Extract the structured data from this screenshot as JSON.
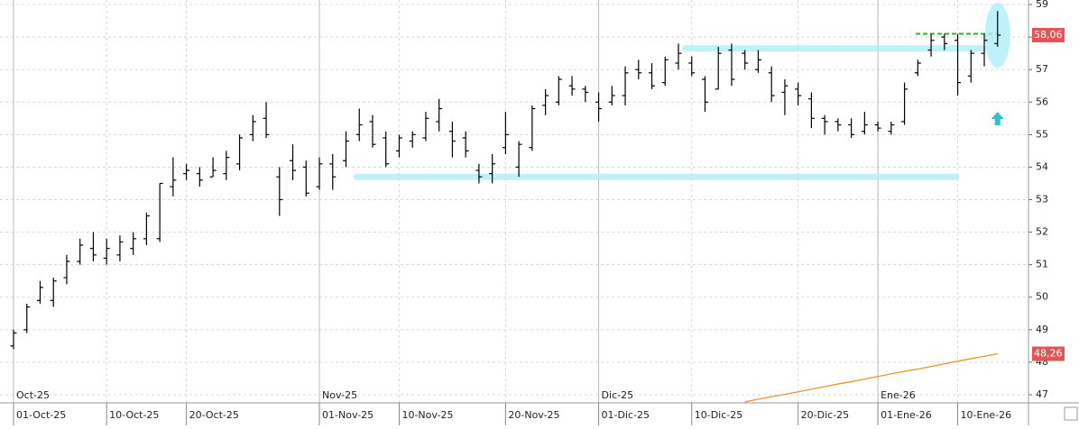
{
  "chart_data": {
    "type": "ohlc",
    "categories": [
      "01-Oct-25",
      null,
      null,
      null,
      null,
      null,
      null,
      "10-Oct-25",
      null,
      null,
      null,
      null,
      null,
      "20-Oct-25",
      null,
      null,
      null,
      null,
      null,
      null,
      null,
      null,
      null,
      "01-Nov-25",
      null,
      null,
      null,
      null,
      null,
      "10-Nov-25",
      null,
      null,
      null,
      null,
      null,
      null,
      null,
      "20-Nov-25",
      null,
      null,
      null,
      null,
      null,
      null,
      "01-Dic-25",
      null,
      null,
      null,
      null,
      null,
      null,
      "10-Dic-25",
      null,
      null,
      null,
      null,
      null,
      null,
      null,
      "20-Dic-25",
      null,
      null,
      null,
      null,
      null,
      "01-Ene-26",
      null,
      null,
      null,
      null,
      null,
      "10-Ene-26",
      null,
      null,
      null
    ],
    "months": [
      "Oct-25",
      null,
      null,
      null,
      null,
      null,
      null,
      null,
      null,
      null,
      null,
      null,
      null,
      null,
      null,
      null,
      null,
      null,
      null,
      null,
      null,
      null,
      null,
      "Nov-25",
      null,
      null,
      null,
      null,
      null,
      null,
      null,
      null,
      null,
      null,
      null,
      null,
      null,
      null,
      null,
      null,
      null,
      null,
      null,
      null,
      "Dic-25",
      null,
      null,
      null,
      null,
      null,
      null,
      null,
      null,
      null,
      null,
      null,
      null,
      null,
      null,
      null,
      null,
      null,
      null,
      null,
      null,
      "Ene-26",
      null,
      null,
      null,
      null,
      null,
      null,
      null,
      null,
      null
    ],
    "open": [
      48.5,
      49.0,
      49.9,
      49.9,
      50.6,
      51.1,
      51.5,
      51.2,
      51.3,
      51.5,
      51.8,
      51.8,
      53.4,
      53.8,
      53.8,
      53.7,
      53.8,
      54.1,
      55.0,
      55.5,
      53.7,
      54.2,
      54.0,
      53.4,
      54.1,
      54.2,
      55.0,
      55.4,
      54.9,
      54.5,
      54.8,
      54.9,
      55.4,
      55.1,
      54.9,
      53.9,
      53.8,
      54.6,
      54.0,
      54.6,
      55.9,
      56.0,
      56.5,
      56.4,
      56.0,
      56.0,
      56.2,
      57.0,
      56.9,
      56.6,
      57.2,
      57.2,
      56.7,
      56.4,
      57.6,
      57.5,
      57.0,
      56.9,
      56.3,
      56.4,
      56.1,
      55.5,
      55.4,
      55.3,
      55.1,
      55.3,
      55.1,
      55.4,
      56.9,
      57.6,
      58.0,
      57.9,
      56.8,
      57.5,
      57.8
    ],
    "high": [
      49.0,
      49.8,
      50.5,
      50.6,
      51.3,
      51.8,
      52.0,
      51.8,
      51.9,
      52.0,
      52.6,
      53.5,
      54.3,
      54.1,
      54.0,
      54.3,
      54.5,
      55.0,
      55.6,
      56.0,
      54.0,
      54.7,
      54.2,
      54.3,
      54.4,
      55.1,
      55.8,
      55.6,
      55.1,
      55.0,
      55.1,
      55.7,
      56.1,
      55.4,
      55.1,
      54.1,
      54.4,
      55.7,
      54.8,
      55.9,
      56.4,
      56.8,
      56.8,
      56.5,
      56.3,
      56.5,
      57.1,
      57.3,
      57.2,
      57.4,
      57.8,
      57.4,
      56.8,
      57.7,
      57.8,
      57.6,
      57.6,
      57.1,
      56.7,
      56.6,
      56.3,
      55.6,
      55.5,
      55.5,
      55.7,
      55.4,
      55.4,
      56.6,
      57.3,
      58.1,
      58.1,
      58.1,
      57.6,
      58.1,
      58.8
    ],
    "low": [
      48.4,
      48.9,
      49.8,
      49.7,
      50.4,
      51.0,
      51.1,
      51.0,
      51.1,
      51.3,
      51.6,
      51.7,
      53.1,
      53.6,
      53.4,
      53.7,
      53.6,
      53.9,
      54.8,
      54.9,
      52.5,
      53.6,
      53.1,
      53.3,
      53.3,
      54.0,
      54.8,
      54.6,
      54.0,
      54.3,
      54.6,
      54.8,
      55.1,
      54.3,
      54.3,
      53.5,
      53.5,
      54.4,
      53.7,
      54.5,
      55.6,
      55.9,
      56.2,
      56.0,
      55.4,
      55.9,
      55.9,
      56.7,
      56.4,
      56.5,
      57.0,
      56.8,
      55.7,
      56.4,
      56.5,
      57.0,
      56.9,
      56.0,
      55.6,
      55.9,
      55.2,
      55.0,
      55.1,
      54.9,
      55.0,
      55.1,
      55.0,
      55.3,
      56.8,
      57.4,
      57.6,
      56.2,
      56.6,
      57.1,
      57.7
    ],
    "close": [
      48.9,
      49.7,
      50.3,
      50.5,
      51.1,
      51.6,
      51.3,
      51.5,
      51.7,
      51.8,
      52.5,
      53.5,
      53.6,
      53.9,
      53.6,
      53.9,
      54.3,
      54.9,
      55.4,
      55.0,
      53.0,
      53.9,
      53.2,
      54.1,
      53.7,
      54.8,
      55.3,
      54.7,
      54.1,
      54.9,
      55.0,
      55.5,
      55.8,
      54.8,
      54.5,
      53.7,
      54.1,
      55.0,
      54.7,
      55.8,
      56.2,
      56.7,
      56.4,
      56.3,
      55.8,
      56.2,
      56.9,
      56.9,
      56.5,
      57.3,
      57.5,
      56.9,
      56.0,
      57.5,
      56.7,
      57.2,
      57.3,
      56.2,
      56.5,
      56.2,
      55.5,
      55.4,
      55.3,
      55.0,
      55.3,
      55.2,
      55.3,
      56.4,
      57.2,
      57.9,
      57.8,
      56.6,
      57.5,
      57.9,
      58.06
    ],
    "bar_color": "#000000",
    "ma": [
      null,
      null,
      null,
      null,
      null,
      null,
      null,
      null,
      null,
      null,
      null,
      null,
      null,
      null,
      null,
      null,
      null,
      null,
      null,
      null,
      null,
      null,
      null,
      null,
      null,
      null,
      null,
      null,
      null,
      null,
      null,
      null,
      null,
      null,
      null,
      null,
      null,
      null,
      null,
      null,
      null,
      null,
      null,
      null,
      null,
      null,
      null,
      null,
      null,
      null,
      null,
      null,
      null,
      null,
      null,
      46.78,
      46.86,
      46.94,
      47.01,
      47.09,
      47.17,
      47.25,
      47.33,
      47.4,
      47.48,
      47.56,
      47.64,
      47.72,
      47.79,
      47.87,
      47.95,
      48.03,
      48.11,
      48.18,
      48.26
    ],
    "ma_color": "#e8962c",
    "last_price": {
      "value": 58.06,
      "label": "58,06"
    },
    "ma_last": {
      "value": 48.26,
      "label": "48,26"
    },
    "support_levels": [
      53.7,
      57.65
    ],
    "target_level": 58.1,
    "ylim": [
      46.75,
      59.14
    ],
    "yticks": [
      47,
      48,
      49,
      50,
      51,
      52,
      53,
      54,
      55,
      56,
      57,
      58,
      59
    ],
    "grid": true
  }
}
